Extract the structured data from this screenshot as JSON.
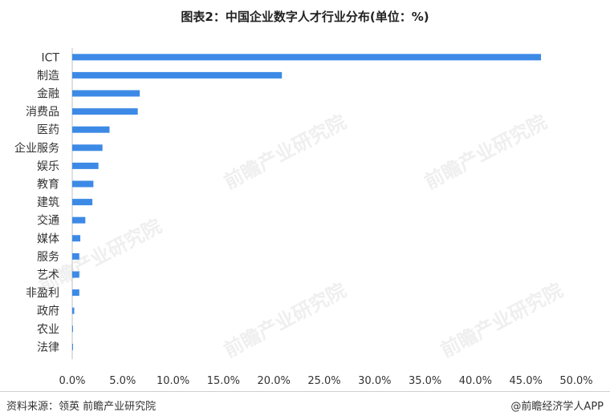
{
  "title": "图表2：中国企业数字人才行业分布(单位：%)",
  "footer": {
    "source": "资料来源：领英 前瞻产业研究院",
    "brand": "@前瞻经济学人APP"
  },
  "watermark": "前瞻产业研究院",
  "colors": {
    "bar": "#3d8ae6",
    "axis": "#bfbfbf",
    "text": "#333333"
  },
  "chart_data": {
    "type": "bar",
    "orientation": "horizontal",
    "categories": [
      "ICT",
      "制造",
      "金融",
      "消费品",
      "医药",
      "企业服务",
      "娱乐",
      "教育",
      "建筑",
      "交通",
      "媒体",
      "服务",
      "艺术",
      "非盈利",
      "政府",
      "农业",
      "法律"
    ],
    "values": [
      46.5,
      20.8,
      6.7,
      6.5,
      3.7,
      3.0,
      2.6,
      2.1,
      2.0,
      1.3,
      0.8,
      0.7,
      0.7,
      0.7,
      0.2,
      0.05,
      0.05
    ],
    "xlim": [
      0,
      50
    ],
    "xticks": [
      "0.0%",
      "5.0%",
      "10.0%",
      "15.0%",
      "20.0%",
      "25.0%",
      "30.0%",
      "35.0%",
      "40.0%",
      "45.0%",
      "50.0%"
    ],
    "grid": false,
    "legend": "none"
  }
}
